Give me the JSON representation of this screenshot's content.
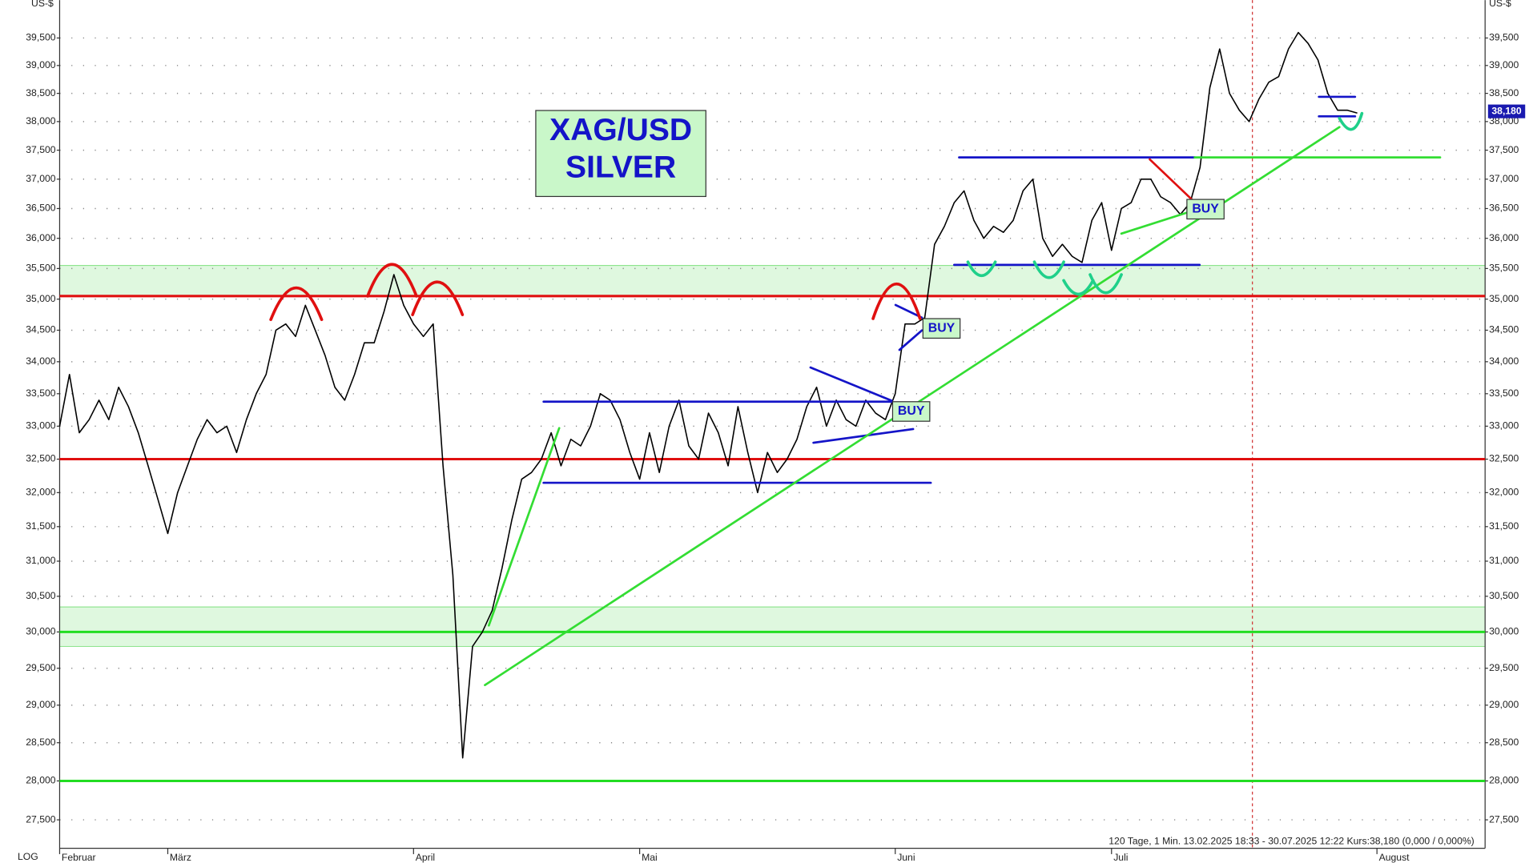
{
  "chart_data": {
    "type": "line",
    "title_lines": [
      "XAG/USD",
      "SILVER"
    ],
    "axis_unit": "US-$",
    "scale_label": "LOG",
    "footer": "120 Tage, 1 Min. 13.02.2025 18:33 - 30.07.2025 12:22  Kurs:38,180 (0,000 / 0,000%)",
    "buy_labels": [
      "BUY",
      "BUY",
      "BUY"
    ],
    "log": true,
    "grid": true,
    "color": "#000000",
    "categories": [
      "Februar",
      null,
      null,
      null,
      null,
      null,
      null,
      null,
      null,
      null,
      null,
      "März",
      null,
      null,
      null,
      null,
      null,
      null,
      null,
      null,
      null,
      null,
      null,
      null,
      null,
      null,
      null,
      null,
      null,
      null,
      null,
      null,
      null,
      null,
      null,
      null,
      "April",
      null,
      null,
      null,
      null,
      null,
      null,
      null,
      null,
      null,
      null,
      null,
      null,
      null,
      null,
      null,
      null,
      null,
      null,
      null,
      null,
      null,
      null,
      "Mai",
      null,
      null,
      null,
      null,
      null,
      null,
      null,
      null,
      null,
      null,
      null,
      null,
      null,
      null,
      null,
      null,
      null,
      null,
      null,
      null,
      null,
      null,
      null,
      null,
      null,
      "Juni",
      null,
      null,
      null,
      null,
      null,
      null,
      null,
      null,
      null,
      null,
      null,
      null,
      null,
      null,
      null,
      null,
      null,
      null,
      null,
      null,
      null,
      "Juli",
      null,
      null,
      null,
      null,
      null,
      null,
      null,
      null,
      null,
      null,
      null,
      null,
      null,
      null,
      null,
      null,
      null,
      null,
      null,
      null,
      null,
      null,
      null,
      null,
      null,
      null,
      "August",
      null,
      null,
      null,
      null,
      null,
      null,
      null,
      null,
      null,
      null,
      null
    ],
    "values": [
      33.0,
      33.8,
      32.9,
      33.1,
      33.4,
      33.1,
      33.6,
      33.3,
      32.9,
      32.4,
      31.9,
      31.4,
      32.0,
      32.4,
      32.8,
      33.1,
      32.9,
      33.0,
      32.6,
      33.1,
      33.5,
      33.8,
      34.5,
      34.6,
      34.4,
      34.9,
      34.5,
      34.1,
      33.6,
      33.4,
      33.8,
      34.3,
      34.3,
      34.8,
      35.4,
      34.9,
      34.6,
      34.4,
      34.6,
      32.4,
      30.8,
      28.3,
      29.8,
      30.0,
      30.3,
      30.9,
      31.6,
      32.2,
      32.3,
      32.5,
      32.9,
      32.4,
      32.8,
      32.7,
      33.0,
      33.5,
      33.4,
      33.1,
      32.6,
      32.2,
      32.9,
      32.3,
      33.0,
      33.4,
      32.7,
      32.5,
      33.2,
      32.9,
      32.4,
      33.3,
      32.6,
      32.0,
      32.6,
      32.3,
      32.5,
      32.8,
      33.3,
      33.6,
      33.0,
      33.4,
      33.1,
      33.0,
      33.4,
      33.2,
      33.1,
      33.5,
      34.6,
      34.6,
      34.7,
      35.9,
      36.2,
      36.6,
      36.8,
      36.3,
      36.0,
      36.2,
      36.1,
      36.3,
      36.8,
      37.0,
      36.0,
      35.7,
      35.9,
      35.7,
      35.6,
      36.3,
      36.6,
      35.8,
      36.5,
      36.6,
      37.0,
      37.0,
      36.7,
      36.6,
      36.4,
      36.6,
      37.2,
      38.6,
      39.3,
      38.5,
      38.2,
      38.0,
      38.4,
      38.7,
      38.8,
      39.3,
      39.6,
      39.4,
      39.1,
      38.5,
      38.2,
      38.2,
      38.15,
      null,
      null,
      null,
      null,
      null,
      null,
      null,
      null,
      null,
      null,
      null,
      null,
      null
    ],
    "last_price": {
      "value": 38.18,
      "label": "38,180"
    },
    "ylim": [
      27.14,
      40.2
    ],
    "yticks": [
      {
        "value": 27.5,
        "label": "27,500"
      },
      {
        "value": 28,
        "label": "28,000"
      },
      {
        "value": 28.5,
        "label": "28,500"
      },
      {
        "value": 29,
        "label": "29,000"
      },
      {
        "value": 29.5,
        "label": "29,500"
      },
      {
        "value": 30,
        "label": "30,000"
      },
      {
        "value": 30.5,
        "label": "30,500"
      },
      {
        "value": 31,
        "label": "31,000"
      },
      {
        "value": 31.5,
        "label": "31,500"
      },
      {
        "value": 32,
        "label": "32,000"
      },
      {
        "value": 32.5,
        "label": "32,500"
      },
      {
        "value": 33,
        "label": "33,000"
      },
      {
        "value": 33.5,
        "label": "33,500"
      },
      {
        "value": 34,
        "label": "34,000"
      },
      {
        "value": 34.5,
        "label": "34,500"
      },
      {
        "value": 35,
        "label": "35,000"
      },
      {
        "value": 35.5,
        "label": "35,500"
      },
      {
        "value": 36,
        "label": "36,000"
      },
      {
        "value": 36.5,
        "label": "36,500"
      },
      {
        "value": 37,
        "label": "37,000"
      },
      {
        "value": 37.5,
        "label": "37,500"
      },
      {
        "value": 38,
        "label": "38,000"
      },
      {
        "value": 38.5,
        "label": "38,500"
      },
      {
        "value": 39,
        "label": "39,000"
      },
      {
        "value": 39.5,
        "label": "39,500"
      }
    ],
    "zones": [
      {
        "from": 35.05,
        "to": 35.55,
        "color": "#dff8df"
      },
      {
        "from": 29.8,
        "to": 30.35,
        "color": "#dff8df"
      }
    ],
    "hlines": [
      {
        "value": 35.05,
        "color": "#e01010"
      },
      {
        "value": 32.5,
        "color": "#e01010"
      },
      {
        "value": 30.0,
        "color": "#22dd22"
      },
      {
        "value": 28.0,
        "color": "#22dd22"
      }
    ]
  }
}
